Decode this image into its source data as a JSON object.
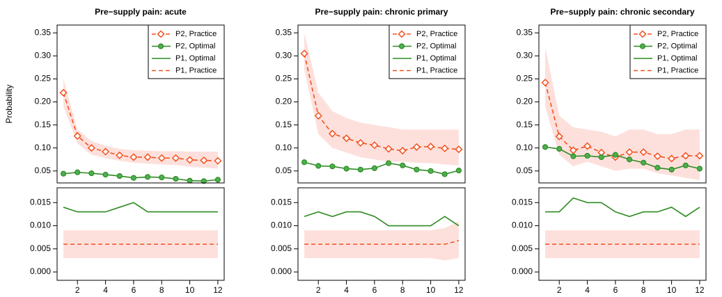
{
  "chart_data": [
    {
      "type": "line",
      "title": "Pre−supply pain: acute",
      "ylabel": "Probability",
      "x": [
        1,
        2,
        3,
        4,
        5,
        6,
        7,
        8,
        9,
        10,
        11,
        12
      ],
      "xlim": [
        0.55,
        12.45
      ],
      "ylim": [
        0.024,
        0.367
      ],
      "yticks": [
        0.05,
        {
          "value": 0.1,
          "label": "0.10"
        },
        0.15,
        {
          "value": 0.2,
          "label": "0.20"
        },
        0.25,
        {
          "value": 0.3,
          "label": "0.30"
        },
        0.35
      ],
      "band": {
        "color": "#fde0dc",
        "upper": [
          0.25,
          0.14,
          0.115,
          0.105,
          0.098,
          0.095,
          0.094,
          0.093,
          0.093,
          0.092,
          0.092,
          0.092
        ],
        "lower": [
          0.19,
          0.11,
          0.085,
          0.078,
          0.072,
          0.068,
          0.066,
          0.064,
          0.063,
          0.059,
          0.057,
          0.055
        ]
      },
      "series": [
        {
          "name": "P2, Practice",
          "color": "#f4511e",
          "dash": true,
          "marker": "diamond",
          "values": [
            0.22,
            0.126,
            0.1,
            0.092,
            0.084,
            0.08,
            0.08,
            0.078,
            0.078,
            0.074,
            0.073,
            0.072
          ]
        },
        {
          "name": "P2, Optimal",
          "color": "#2e8b22",
          "dash": false,
          "marker": "circle",
          "values": [
            0.044,
            0.047,
            0.045,
            0.042,
            0.039,
            0.035,
            0.037,
            0.036,
            0.033,
            0.029,
            0.028,
            0.031
          ]
        }
      ],
      "legend": "top-right"
    },
    {
      "type": "line",
      "x": [
        1,
        2,
        3,
        4,
        5,
        6,
        7,
        8,
        9,
        10,
        11,
        12
      ],
      "xlim": [
        0.55,
        12.45
      ],
      "ylim": [
        -0.0018,
        0.0182
      ],
      "yticks": [
        {
          "value": 0,
          "label": "0.000"
        },
        0.005,
        {
          "value": 0.01,
          "label": "0.010"
        },
        0.015
      ],
      "xticks": [
        2,
        4,
        6,
        8,
        10,
        12
      ],
      "band": {
        "color": "#fde0dc",
        "upper": [
          0.009,
          0.009,
          0.009,
          0.009,
          0.009,
          0.009,
          0.009,
          0.009,
          0.009,
          0.009,
          0.009,
          0.009
        ],
        "lower": [
          0.003,
          0.003,
          0.003,
          0.003,
          0.003,
          0.003,
          0.003,
          0.003,
          0.003,
          0.003,
          0.003,
          0.003
        ]
      },
      "series": [
        {
          "name": "P1, Optimal",
          "color": "#2e8b22",
          "dash": false,
          "values": [
            0.014,
            0.013,
            0.013,
            0.013,
            0.014,
            0.015,
            0.013,
            0.013,
            0.013,
            0.013,
            0.013,
            0.013
          ]
        },
        {
          "name": "P1, Practice",
          "color": "#f4511e",
          "dash": true,
          "values": [
            0.006,
            0.006,
            0.006,
            0.006,
            0.006,
            0.006,
            0.006,
            0.006,
            0.006,
            0.006,
            0.006,
            0.006
          ]
        }
      ]
    },
    {
      "type": "line",
      "title": "Pre−supply pain: chronic primary",
      "x": [
        1,
        2,
        3,
        4,
        5,
        6,
        7,
        8,
        9,
        10,
        11,
        12
      ],
      "xlim": [
        0.55,
        12.45
      ],
      "ylim": [
        0.024,
        0.367
      ],
      "yticks": [
        0.05,
        {
          "value": 0.1,
          "label": "0.10"
        },
        0.15,
        {
          "value": 0.2,
          "label": "0.20"
        },
        0.25,
        {
          "value": 0.3,
          "label": "0.30"
        },
        0.35
      ],
      "band": {
        "color": "#fde0dc",
        "upper": [
          0.35,
          0.22,
          0.18,
          0.165,
          0.155,
          0.15,
          0.145,
          0.14,
          0.14,
          0.14,
          0.14,
          0.14
        ],
        "lower": [
          0.27,
          0.13,
          0.1,
          0.09,
          0.08,
          0.075,
          0.07,
          0.07,
          0.068,
          0.067,
          0.064,
          0.062
        ]
      },
      "series": [
        {
          "name": "P2, Practice",
          "color": "#f4511e",
          "dash": true,
          "marker": "diamond",
          "values": [
            0.305,
            0.17,
            0.131,
            0.121,
            0.111,
            0.106,
            0.098,
            0.094,
            0.102,
            0.103,
            0.099,
            0.097
          ]
        },
        {
          "name": "P2, Optimal",
          "color": "#2e8b22",
          "dash": false,
          "marker": "circle",
          "values": [
            0.069,
            0.061,
            0.06,
            0.055,
            0.053,
            0.056,
            0.067,
            0.062,
            0.053,
            0.05,
            0.043,
            0.051
          ]
        }
      ],
      "legend": "top-right"
    },
    {
      "type": "line",
      "x": [
        1,
        2,
        3,
        4,
        5,
        6,
        7,
        8,
        9,
        10,
        11,
        12
      ],
      "xlim": [
        0.55,
        12.45
      ],
      "ylim": [
        -0.0018,
        0.0182
      ],
      "yticks": [
        {
          "value": 0,
          "label": "0.000"
        },
        0.005,
        {
          "value": 0.01,
          "label": "0.010"
        },
        0.015
      ],
      "xticks": [
        2,
        4,
        6,
        8,
        10,
        12
      ],
      "band": {
        "color": "#fde0dc",
        "upper": [
          0.009,
          0.009,
          0.009,
          0.009,
          0.009,
          0.009,
          0.009,
          0.009,
          0.009,
          0.009,
          0.0095,
          0.011
        ],
        "lower": [
          0.003,
          0.003,
          0.003,
          0.003,
          0.003,
          0.003,
          0.003,
          0.003,
          0.003,
          0.003,
          0.0025,
          0.003
        ]
      },
      "series": [
        {
          "name": "P1, Optimal",
          "color": "#2e8b22",
          "dash": false,
          "values": [
            0.012,
            0.013,
            0.012,
            0.013,
            0.013,
            0.012,
            0.01,
            0.01,
            0.01,
            0.01,
            0.012,
            0.01
          ]
        },
        {
          "name": "P1, Practice",
          "color": "#f4511e",
          "dash": true,
          "values": [
            0.006,
            0.006,
            0.006,
            0.006,
            0.006,
            0.006,
            0.006,
            0.006,
            0.006,
            0.006,
            0.006,
            0.0068
          ]
        }
      ]
    },
    {
      "type": "line",
      "title": "Pre−supply pain: chronic secondary",
      "x": [
        1,
        2,
        3,
        4,
        5,
        6,
        7,
        8,
        9,
        10,
        11,
        12
      ],
      "xlim": [
        0.55,
        12.45
      ],
      "ylim": [
        0.024,
        0.367
      ],
      "yticks": [
        0.05,
        {
          "value": 0.1,
          "label": "0.10"
        },
        0.15,
        {
          "value": 0.2,
          "label": "0.20"
        },
        0.25,
        {
          "value": 0.3,
          "label": "0.30"
        },
        0.35
      ],
      "band": {
        "color": "#fde0dc",
        "upper": [
          0.32,
          0.17,
          0.145,
          0.14,
          0.135,
          0.125,
          0.14,
          0.14,
          0.13,
          0.13,
          0.14,
          0.14
        ],
        "lower": [
          0.19,
          0.085,
          0.06,
          0.07,
          0.06,
          0.05,
          0.055,
          0.055,
          0.045,
          0.04,
          0.035,
          0.03
        ]
      },
      "series": [
        {
          "name": "P2, Practice",
          "color": "#f4511e",
          "dash": true,
          "marker": "diamond",
          "values": [
            0.242,
            0.125,
            0.095,
            0.104,
            0.09,
            0.08,
            0.091,
            0.091,
            0.082,
            0.077,
            0.083,
            0.083
          ]
        },
        {
          "name": "P2, Optimal",
          "color": "#2e8b22",
          "dash": false,
          "marker": "circle",
          "values": [
            0.102,
            0.098,
            0.082,
            0.083,
            0.08,
            0.085,
            0.075,
            0.068,
            0.057,
            0.053,
            0.062,
            0.055
          ]
        }
      ],
      "legend": "top-right"
    },
    {
      "type": "line",
      "x": [
        1,
        2,
        3,
        4,
        5,
        6,
        7,
        8,
        9,
        10,
        11,
        12
      ],
      "xlim": [
        0.55,
        12.45
      ],
      "ylim": [
        -0.0018,
        0.0182
      ],
      "yticks": [
        {
          "value": 0,
          "label": "0.000"
        },
        0.005,
        {
          "value": 0.01,
          "label": "0.010"
        },
        0.015
      ],
      "xticks": [
        2,
        4,
        6,
        8,
        10,
        12
      ],
      "band": {
        "color": "#fde0dc",
        "upper": [
          0.009,
          0.009,
          0.009,
          0.009,
          0.009,
          0.009,
          0.009,
          0.009,
          0.009,
          0.009,
          0.009,
          0.009
        ],
        "lower": [
          0.003,
          0.003,
          0.003,
          0.003,
          0.003,
          0.003,
          0.003,
          0.003,
          0.003,
          0.003,
          0.003,
          0.003
        ]
      },
      "series": [
        {
          "name": "P1, Optimal",
          "color": "#2e8b22",
          "dash": false,
          "values": [
            0.013,
            0.013,
            0.016,
            0.015,
            0.015,
            0.013,
            0.012,
            0.013,
            0.013,
            0.014,
            0.012,
            0.014
          ]
        },
        {
          "name": "P1, Practice",
          "color": "#f4511e",
          "dash": true,
          "values": [
            0.006,
            0.006,
            0.006,
            0.006,
            0.006,
            0.006,
            0.006,
            0.006,
            0.006,
            0.006,
            0.006,
            0.006
          ]
        }
      ]
    }
  ]
}
